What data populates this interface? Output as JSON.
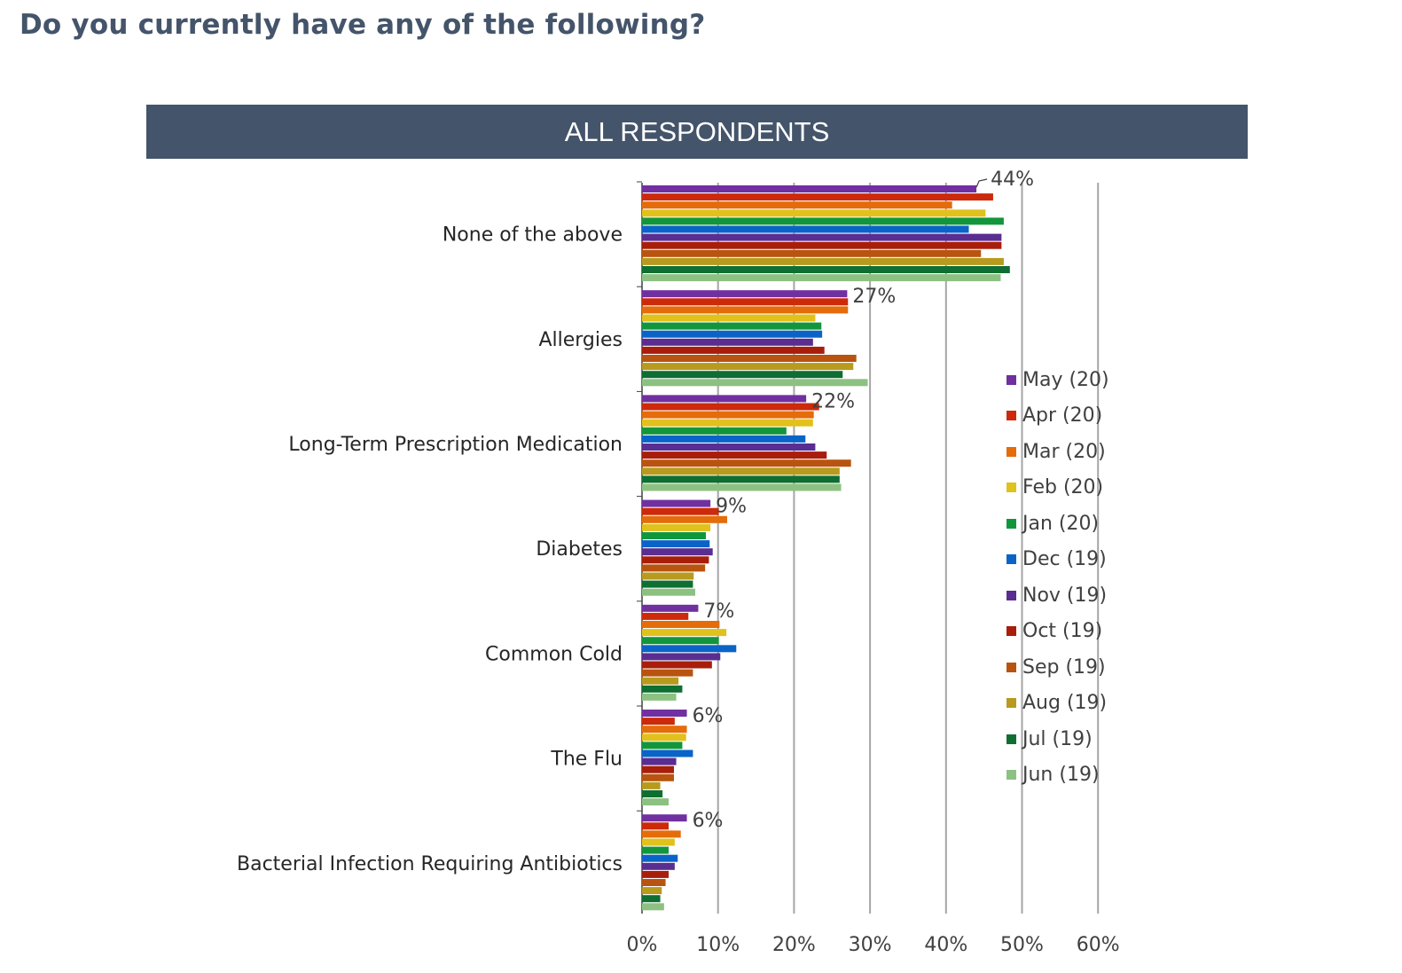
{
  "title": "Do you currently have any of the following?",
  "banner": "ALL RESPONDENTS",
  "chart_data": {
    "type": "bar",
    "orientation": "horizontal",
    "categories": [
      "None of the above",
      "Allergies",
      "Long-Term Prescription Medication",
      "Diabetes",
      "Common Cold",
      "The Flu",
      "Bacterial Infection Requiring Antibiotics"
    ],
    "x_ticks": [
      "0%",
      "10%",
      "20%",
      "30%",
      "40%",
      "50%",
      "60%"
    ],
    "xlim": [
      0,
      60
    ],
    "grid": true,
    "legend_position": "right",
    "data_labels": [
      "44%",
      "27%",
      "22%",
      "9%",
      "7%",
      "6%",
      "6%"
    ],
    "series": [
      {
        "name": "May (20)",
        "color": "#7030a0",
        "values": [
          44,
          27,
          21.6,
          9,
          7.4,
          5.9,
          5.9
        ]
      },
      {
        "name": "Apr (20)",
        "color": "#cc2a0a",
        "values": [
          46.2,
          27.1,
          23.3,
          10.1,
          6.1,
          4.3,
          3.5
        ]
      },
      {
        "name": "Mar (20)",
        "color": "#e46c0a",
        "values": [
          40.8,
          27.1,
          22.6,
          11.2,
          10.2,
          5.9,
          5.1
        ]
      },
      {
        "name": "Feb (20)",
        "color": "#e1c11c",
        "values": [
          45.2,
          22.8,
          22.5,
          9,
          11.1,
          5.8,
          4.3
        ]
      },
      {
        "name": "Jan (20)",
        "color": "#12963c",
        "values": [
          47.6,
          23.6,
          19.0,
          8.4,
          10.1,
          5.3,
          3.5
        ]
      },
      {
        "name": "Dec (19)",
        "color": "#0a64c8",
        "values": [
          43.0,
          23.7,
          21.5,
          8.9,
          12.4,
          6.7,
          4.7
        ]
      },
      {
        "name": "Nov (19)",
        "color": "#5a2d91",
        "values": [
          47.3,
          22.5,
          22.8,
          9.3,
          10.3,
          4.5,
          4.3
        ]
      },
      {
        "name": "Oct (19)",
        "color": "#a81e0a",
        "values": [
          47.3,
          24.0,
          24.3,
          8.8,
          9.2,
          4.2,
          3.5
        ]
      },
      {
        "name": "Sep (19)",
        "color": "#b8540f",
        "values": [
          44.6,
          28.2,
          27.5,
          8.3,
          6.7,
          4.2,
          3.1
        ]
      },
      {
        "name": "Aug (19)",
        "color": "#b89a1e",
        "values": [
          47.6,
          27.8,
          26.0,
          6.8,
          4.8,
          2.4,
          2.6
        ]
      },
      {
        "name": "Jul (19)",
        "color": "#0f6e32",
        "values": [
          48.4,
          26.4,
          26.0,
          6.7,
          5.3,
          2.7,
          2.4
        ]
      },
      {
        "name": "Jun (19)",
        "color": "#8cc182",
        "values": [
          47.2,
          29.7,
          26.2,
          7.0,
          4.5,
          3.5,
          2.9
        ]
      }
    ]
  }
}
